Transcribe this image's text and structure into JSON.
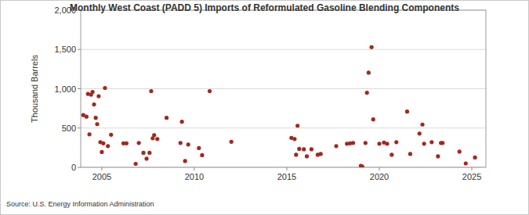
{
  "chart_data": {
    "type": "scatter",
    "title": "Monthly West Coast (PADD 5) Imports of Reformulated Gasoline Blending Components",
    "y_label": "Thousand Barrels",
    "source": "Source: U.S. Energy Information Administration",
    "x": [
      2004.0,
      2004.17,
      2004.25,
      2004.33,
      2004.42,
      2004.5,
      2004.58,
      2004.67,
      2004.75,
      2004.83,
      2004.92,
      2005.0,
      2005.08,
      2005.17,
      2005.33,
      2005.5,
      2006.17,
      2006.33,
      2006.83,
      2007.0,
      2007.25,
      2007.42,
      2007.58,
      2007.67,
      2007.75,
      2007.83,
      2008.0,
      2008.5,
      2009.25,
      2009.33,
      2009.5,
      2009.67,
      2010.25,
      2010.42,
      2010.83,
      2012.0,
      2015.25,
      2015.42,
      2015.5,
      2015.58,
      2015.67,
      2015.92,
      2016.08,
      2016.33,
      2016.67,
      2016.83,
      2017.67,
      2018.25,
      2018.42,
      2018.58,
      2019.0,
      2019.08,
      2019.25,
      2019.33,
      2019.42,
      2019.58,
      2019.67,
      2020.0,
      2020.25,
      2020.42,
      2020.67,
      2020.92,
      2021.5,
      2021.67,
      2022.17,
      2022.33,
      2022.42,
      2022.83,
      2023.17,
      2023.33,
      2023.42,
      2024.33,
      2024.67,
      2025.17
    ],
    "values": [
      665,
      645,
      935,
      420,
      925,
      960,
      800,
      630,
      550,
      905,
      320,
      195,
      305,
      1010,
      270,
      415,
      305,
      305,
      45,
      310,
      185,
      110,
      185,
      970,
      370,
      410,
      360,
      630,
      310,
      580,
      80,
      290,
      245,
      155,
      970,
      325,
      375,
      360,
      160,
      530,
      235,
      230,
      140,
      230,
      160,
      170,
      270,
      300,
      305,
      310,
      20,
      10,
      310,
      950,
      1205,
      1530,
      610,
      300,
      315,
      300,
      160,
      320,
      710,
      170,
      430,
      545,
      300,
      320,
      140,
      310,
      310,
      200,
      50,
      125
    ],
    "color": "#a3281d",
    "marker": "circle",
    "xlim": [
      2003.86,
      2025.76
    ],
    "xticks": [
      2005,
      2010,
      2015,
      2020,
      2025
    ],
    "ylim": [
      0,
      2000
    ],
    "yticks": [
      0,
      500,
      {
        "value": 1000,
        "label": "1,000"
      },
      {
        "value": 1500,
        "label": "1,500"
      },
      {
        "value": 2000,
        "label": "2,000"
      }
    ],
    "grid": true
  }
}
